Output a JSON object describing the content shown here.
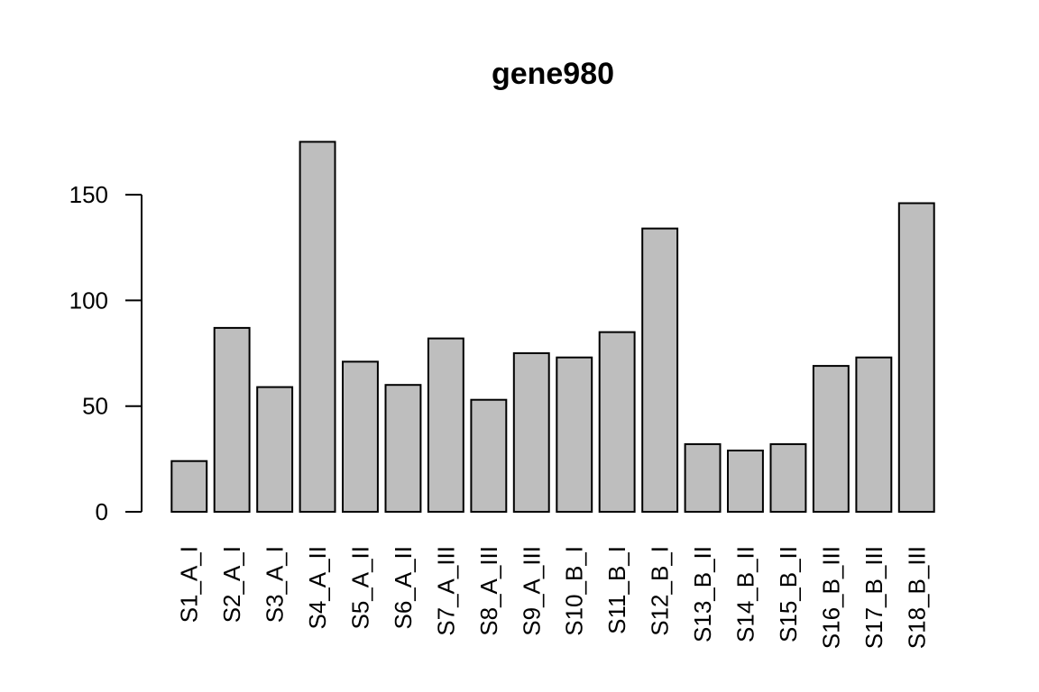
{
  "chart_data": {
    "type": "bar",
    "title": "gene980",
    "xlabel": "",
    "ylabel": "",
    "categories": [
      "S1_A_I",
      "S2_A_I",
      "S3_A_I",
      "S4_A_II",
      "S5_A_II",
      "S6_A_II",
      "S7_A_III",
      "S8_A_III",
      "S9_A_III",
      "S10_B_I",
      "S11_B_I",
      "S12_B_I",
      "S13_B_II",
      "S14_B_II",
      "S15_B_II",
      "S16_B_III",
      "S17_B_III",
      "S18_B_III"
    ],
    "values": [
      24,
      87,
      59,
      175,
      71,
      60,
      82,
      53,
      75,
      73,
      85,
      134,
      32,
      29,
      32,
      69,
      73,
      146
    ],
    "ylim": [
      0,
      175
    ],
    "yticks": [
      0,
      50,
      100,
      150
    ],
    "bar_color": "#bebebe",
    "grid": false,
    "legend": "none"
  }
}
